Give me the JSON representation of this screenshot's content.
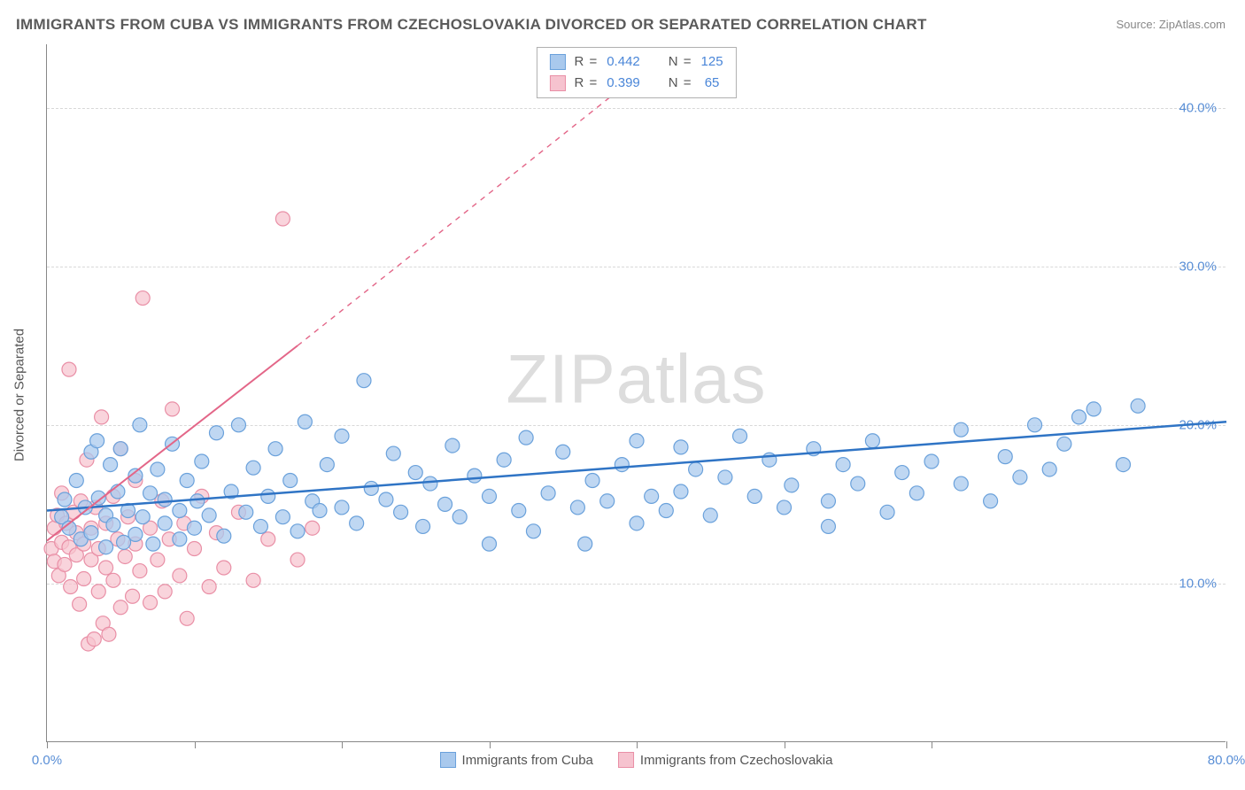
{
  "title": "IMMIGRANTS FROM CUBA VS IMMIGRANTS FROM CZECHOSLOVAKIA DIVORCED OR SEPARATED CORRELATION CHART",
  "source": "Source: ZipAtlas.com",
  "y_axis_title": "Divorced or Separated",
  "watermark_bold": "ZIP",
  "watermark_thin": "atlas",
  "xlim": [
    0,
    80
  ],
  "ylim": [
    0,
    44
  ],
  "x_ticks": [
    0,
    10,
    20,
    30,
    40,
    50,
    60,
    80
  ],
  "x_tick_labels": {
    "0": "0.0%",
    "80": "80.0%"
  },
  "y_gridlines": [
    10,
    20,
    30,
    40
  ],
  "y_tick_labels": {
    "10": "10.0%",
    "20": "20.0%",
    "30": "30.0%",
    "40": "40.0%"
  },
  "stats": [
    {
      "swatch_fill": "#a9c9ed",
      "swatch_border": "#6aa1db",
      "r_label": "R =",
      "r": "0.442",
      "n_label": "N =",
      "n": "125"
    },
    {
      "swatch_fill": "#f6c3cf",
      "swatch_border": "#e98fa6",
      "r_label": "R =",
      "r": "0.399",
      "n_label": "N =",
      "n": " 65"
    }
  ],
  "legend": [
    {
      "swatch_fill": "#a9c9ed",
      "swatch_border": "#6aa1db",
      "label": "Immigrants from Cuba"
    },
    {
      "swatch_fill": "#f6c3cf",
      "swatch_border": "#e98fa6",
      "label": "Immigrants from Czechoslovakia"
    }
  ],
  "series": [
    {
      "name": "cuba",
      "marker_fill": "#a9c9ed",
      "marker_fill_opacity": 0.75,
      "marker_stroke": "#6aa1db",
      "marker_radius": 8,
      "trend_color": "#2f74c5",
      "trend_width": 2.5,
      "trend_x1": 0,
      "trend_y1": 14.6,
      "trend_solid_x2": 80,
      "trend_solid_y2": 20.2,
      "trend_dash_x2": 80,
      "trend_dash_y2": 20.2,
      "points": [
        [
          1,
          14.2
        ],
        [
          1.2,
          15.3
        ],
        [
          1.5,
          13.5
        ],
        [
          2,
          16.5
        ],
        [
          2.3,
          12.8
        ],
        [
          2.6,
          14.8
        ],
        [
          3,
          18.3
        ],
        [
          3,
          13.2
        ],
        [
          3.4,
          19
        ],
        [
          3.5,
          15.4
        ],
        [
          4,
          12.3
        ],
        [
          4,
          14.3
        ],
        [
          4.3,
          17.5
        ],
        [
          4.5,
          13.7
        ],
        [
          4.8,
          15.8
        ],
        [
          5,
          18.5
        ],
        [
          5.2,
          12.6
        ],
        [
          5.5,
          14.6
        ],
        [
          6,
          16.8
        ],
        [
          6,
          13.1
        ],
        [
          6.3,
          20
        ],
        [
          6.5,
          14.2
        ],
        [
          7,
          15.7
        ],
        [
          7.2,
          12.5
        ],
        [
          7.5,
          17.2
        ],
        [
          8,
          13.8
        ],
        [
          8,
          15.3
        ],
        [
          8.5,
          18.8
        ],
        [
          9,
          14.6
        ],
        [
          9,
          12.8
        ],
        [
          9.5,
          16.5
        ],
        [
          10,
          13.5
        ],
        [
          10.2,
          15.2
        ],
        [
          10.5,
          17.7
        ],
        [
          11,
          14.3
        ],
        [
          11.5,
          19.5
        ],
        [
          12,
          13
        ],
        [
          12.5,
          15.8
        ],
        [
          13,
          20
        ],
        [
          13.5,
          14.5
        ],
        [
          14,
          17.3
        ],
        [
          14.5,
          13.6
        ],
        [
          15,
          15.5
        ],
        [
          15.5,
          18.5
        ],
        [
          16,
          14.2
        ],
        [
          16.5,
          16.5
        ],
        [
          17,
          13.3
        ],
        [
          17.5,
          20.2
        ],
        [
          18,
          15.2
        ],
        [
          18.5,
          14.6
        ],
        [
          19,
          17.5
        ],
        [
          20,
          14.8
        ],
        [
          20,
          19.3
        ],
        [
          21,
          13.8
        ],
        [
          21.5,
          22.8
        ],
        [
          22,
          16
        ],
        [
          23,
          15.3
        ],
        [
          23.5,
          18.2
        ],
        [
          24,
          14.5
        ],
        [
          25,
          17
        ],
        [
          25.5,
          13.6
        ],
        [
          26,
          16.3
        ],
        [
          27,
          15
        ],
        [
          27.5,
          18.7
        ],
        [
          28,
          14.2
        ],
        [
          29,
          16.8
        ],
        [
          30,
          12.5
        ],
        [
          30,
          15.5
        ],
        [
          31,
          17.8
        ],
        [
          32,
          14.6
        ],
        [
          32.5,
          19.2
        ],
        [
          33,
          13.3
        ],
        [
          34,
          15.7
        ],
        [
          35,
          18.3
        ],
        [
          36,
          14.8
        ],
        [
          36.5,
          12.5
        ],
        [
          37,
          16.5
        ],
        [
          38,
          15.2
        ],
        [
          39,
          17.5
        ],
        [
          40,
          13.8
        ],
        [
          40,
          19
        ],
        [
          41,
          15.5
        ],
        [
          42,
          14.6
        ],
        [
          43,
          18.6
        ],
        [
          43,
          15.8
        ],
        [
          44,
          17.2
        ],
        [
          45,
          14.3
        ],
        [
          46,
          16.7
        ],
        [
          47,
          19.3
        ],
        [
          48,
          15.5
        ],
        [
          49,
          17.8
        ],
        [
          50,
          14.8
        ],
        [
          50.5,
          16.2
        ],
        [
          52,
          18.5
        ],
        [
          53,
          15.2
        ],
        [
          53,
          13.6
        ],
        [
          54,
          17.5
        ],
        [
          55,
          16.3
        ],
        [
          56,
          19
        ],
        [
          57,
          14.5
        ],
        [
          58,
          17
        ],
        [
          59,
          15.7
        ],
        [
          60,
          17.7
        ],
        [
          62,
          19.7
        ],
        [
          62,
          16.3
        ],
        [
          64,
          15.2
        ],
        [
          65,
          18
        ],
        [
          66,
          16.7
        ],
        [
          67,
          20
        ],
        [
          68,
          17.2
        ],
        [
          69,
          18.8
        ],
        [
          70,
          20.5
        ],
        [
          71,
          21
        ],
        [
          73,
          17.5
        ],
        [
          74,
          21.2
        ]
      ]
    },
    {
      "name": "czech",
      "marker_fill": "#f6c3cf",
      "marker_fill_opacity": 0.72,
      "marker_stroke": "#e98fa6",
      "marker_radius": 8,
      "trend_color": "#e36688",
      "trend_width": 2,
      "trend_x1": 0,
      "trend_y1": 12.7,
      "trend_solid_x2": 17,
      "trend_solid_y2": 25,
      "trend_dash_x2": 40,
      "trend_dash_y2": 42,
      "points": [
        [
          0.3,
          12.2
        ],
        [
          0.5,
          13.5
        ],
        [
          0.5,
          11.4
        ],
        [
          0.7,
          14.3
        ],
        [
          0.8,
          10.5
        ],
        [
          1,
          12.6
        ],
        [
          1,
          15.7
        ],
        [
          1.2,
          11.2
        ],
        [
          1.3,
          13.8
        ],
        [
          1.5,
          12.3
        ],
        [
          1.5,
          23.5
        ],
        [
          1.6,
          9.8
        ],
        [
          1.8,
          14.5
        ],
        [
          2,
          11.8
        ],
        [
          2,
          13.2
        ],
        [
          2.2,
          8.7
        ],
        [
          2.3,
          15.2
        ],
        [
          2.5,
          12.5
        ],
        [
          2.5,
          10.3
        ],
        [
          2.7,
          17.8
        ],
        [
          2.8,
          6.2
        ],
        [
          3,
          13.5
        ],
        [
          3,
          11.5
        ],
        [
          3.2,
          6.5
        ],
        [
          3.3,
          14.8
        ],
        [
          3.5,
          9.5
        ],
        [
          3.5,
          12.2
        ],
        [
          3.7,
          20.5
        ],
        [
          3.8,
          7.5
        ],
        [
          4,
          13.8
        ],
        [
          4,
          11
        ],
        [
          4.2,
          6.8
        ],
        [
          4.5,
          15.5
        ],
        [
          4.5,
          10.2
        ],
        [
          4.8,
          12.8
        ],
        [
          5,
          8.5
        ],
        [
          5,
          18.5
        ],
        [
          5.3,
          11.7
        ],
        [
          5.5,
          14.2
        ],
        [
          5.8,
          9.2
        ],
        [
          6,
          12.5
        ],
        [
          6,
          16.5
        ],
        [
          6.3,
          10.8
        ],
        [
          6.5,
          28
        ],
        [
          7,
          13.5
        ],
        [
          7,
          8.8
        ],
        [
          7.5,
          11.5
        ],
        [
          7.8,
          15.2
        ],
        [
          8,
          9.5
        ],
        [
          8.3,
          12.8
        ],
        [
          8.5,
          21
        ],
        [
          9,
          10.5
        ],
        [
          9.3,
          13.8
        ],
        [
          9.5,
          7.8
        ],
        [
          10,
          12.2
        ],
        [
          10.5,
          15.5
        ],
        [
          11,
          9.8
        ],
        [
          11.5,
          13.2
        ],
        [
          12,
          11
        ],
        [
          13,
          14.5
        ],
        [
          14,
          10.2
        ],
        [
          15,
          12.8
        ],
        [
          16,
          33
        ],
        [
          17,
          11.5
        ],
        [
          18,
          13.5
        ]
      ]
    }
  ]
}
